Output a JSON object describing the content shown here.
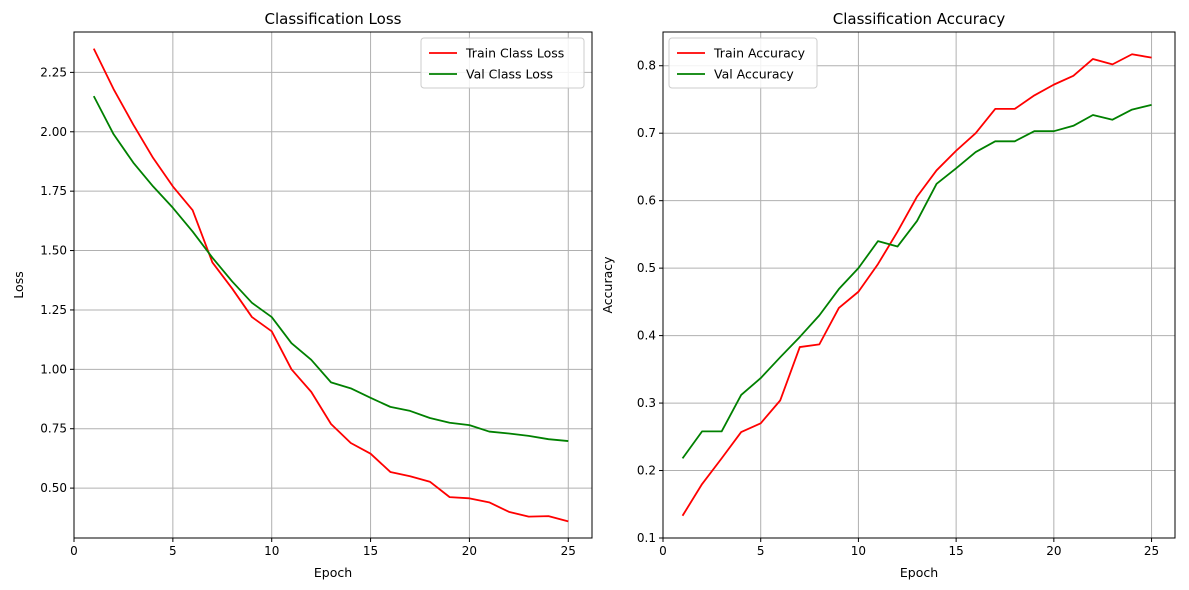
{
  "chart_data": [
    {
      "type": "line",
      "title": "Classification Loss",
      "xlabel": "Epoch",
      "ylabel": "Loss",
      "xlim": [
        0,
        26.2
      ],
      "ylim": [
        0.29,
        2.42
      ],
      "xticks": [
        0,
        5,
        10,
        15,
        20,
        25
      ],
      "yticks": [
        0.5,
        0.75,
        1.0,
        1.25,
        1.5,
        1.75,
        2.0,
        2.25
      ],
      "ytick_labels": [
        "0.50",
        "0.75",
        "1.00",
        "1.25",
        "1.50",
        "1.75",
        "2.00",
        "2.25"
      ],
      "grid": true,
      "legend_position": "upper-right",
      "x": [
        1,
        2,
        3,
        4,
        5,
        6,
        7,
        8,
        9,
        10,
        11,
        12,
        13,
        14,
        15,
        16,
        17,
        18,
        19,
        20,
        21,
        22,
        23,
        24,
        25
      ],
      "series": [
        {
          "name": "Train Class Loss",
          "color": "#ff0000",
          "values": [
            2.35,
            2.18,
            2.03,
            1.89,
            1.77,
            1.67,
            1.45,
            1.34,
            1.22,
            1.16,
            1.0,
            0.905,
            0.77,
            0.69,
            0.645,
            0.568,
            0.55,
            0.527,
            0.462,
            0.457,
            0.44,
            0.4,
            0.38,
            0.382,
            0.36
          ]
        },
        {
          "name": "Val Class Loss",
          "color": "#008000",
          "values": [
            2.15,
            1.99,
            1.87,
            1.77,
            1.68,
            1.58,
            1.47,
            1.37,
            1.28,
            1.22,
            1.11,
            1.04,
            0.945,
            0.92,
            0.88,
            0.842,
            0.825,
            0.795,
            0.775,
            0.765,
            0.738,
            0.73,
            0.72,
            0.706,
            0.698
          ]
        }
      ]
    },
    {
      "type": "line",
      "title": "Classification Accuracy",
      "xlabel": "Epoch",
      "ylabel": "Accuracy",
      "xlim": [
        0,
        26.2
      ],
      "ylim": [
        0.1,
        0.85
      ],
      "xticks": [
        0,
        5,
        10,
        15,
        20,
        25
      ],
      "yticks": [
        0.1,
        0.2,
        0.3,
        0.4,
        0.5,
        0.6,
        0.7,
        0.8
      ],
      "ytick_labels": [
        "0.1",
        "0.2",
        "0.3",
        "0.4",
        "0.5",
        "0.6",
        "0.7",
        "0.8"
      ],
      "grid": true,
      "legend_position": "upper-left",
      "x": [
        1,
        2,
        3,
        4,
        5,
        6,
        7,
        8,
        9,
        10,
        11,
        12,
        13,
        14,
        15,
        16,
        17,
        18,
        19,
        20,
        21,
        22,
        23,
        24,
        25
      ],
      "series": [
        {
          "name": "Train Accuracy",
          "color": "#ff0000",
          "values": [
            0.133,
            0.18,
            0.218,
            0.257,
            0.27,
            0.304,
            0.383,
            0.387,
            0.441,
            0.465,
            0.506,
            0.554,
            0.606,
            0.645,
            0.674,
            0.7,
            0.736,
            0.736,
            0.756,
            0.772,
            0.785,
            0.81,
            0.802,
            0.817,
            0.812
          ]
        },
        {
          "name": "Val Accuracy",
          "color": "#008000",
          "values": [
            0.218,
            0.258,
            0.258,
            0.312,
            0.337,
            0.368,
            0.398,
            0.43,
            0.469,
            0.5,
            0.54,
            0.532,
            0.57,
            0.625,
            0.648,
            0.672,
            0.688,
            0.688,
            0.703,
            0.703,
            0.711,
            0.727,
            0.72,
            0.735,
            0.742
          ]
        }
      ]
    }
  ]
}
